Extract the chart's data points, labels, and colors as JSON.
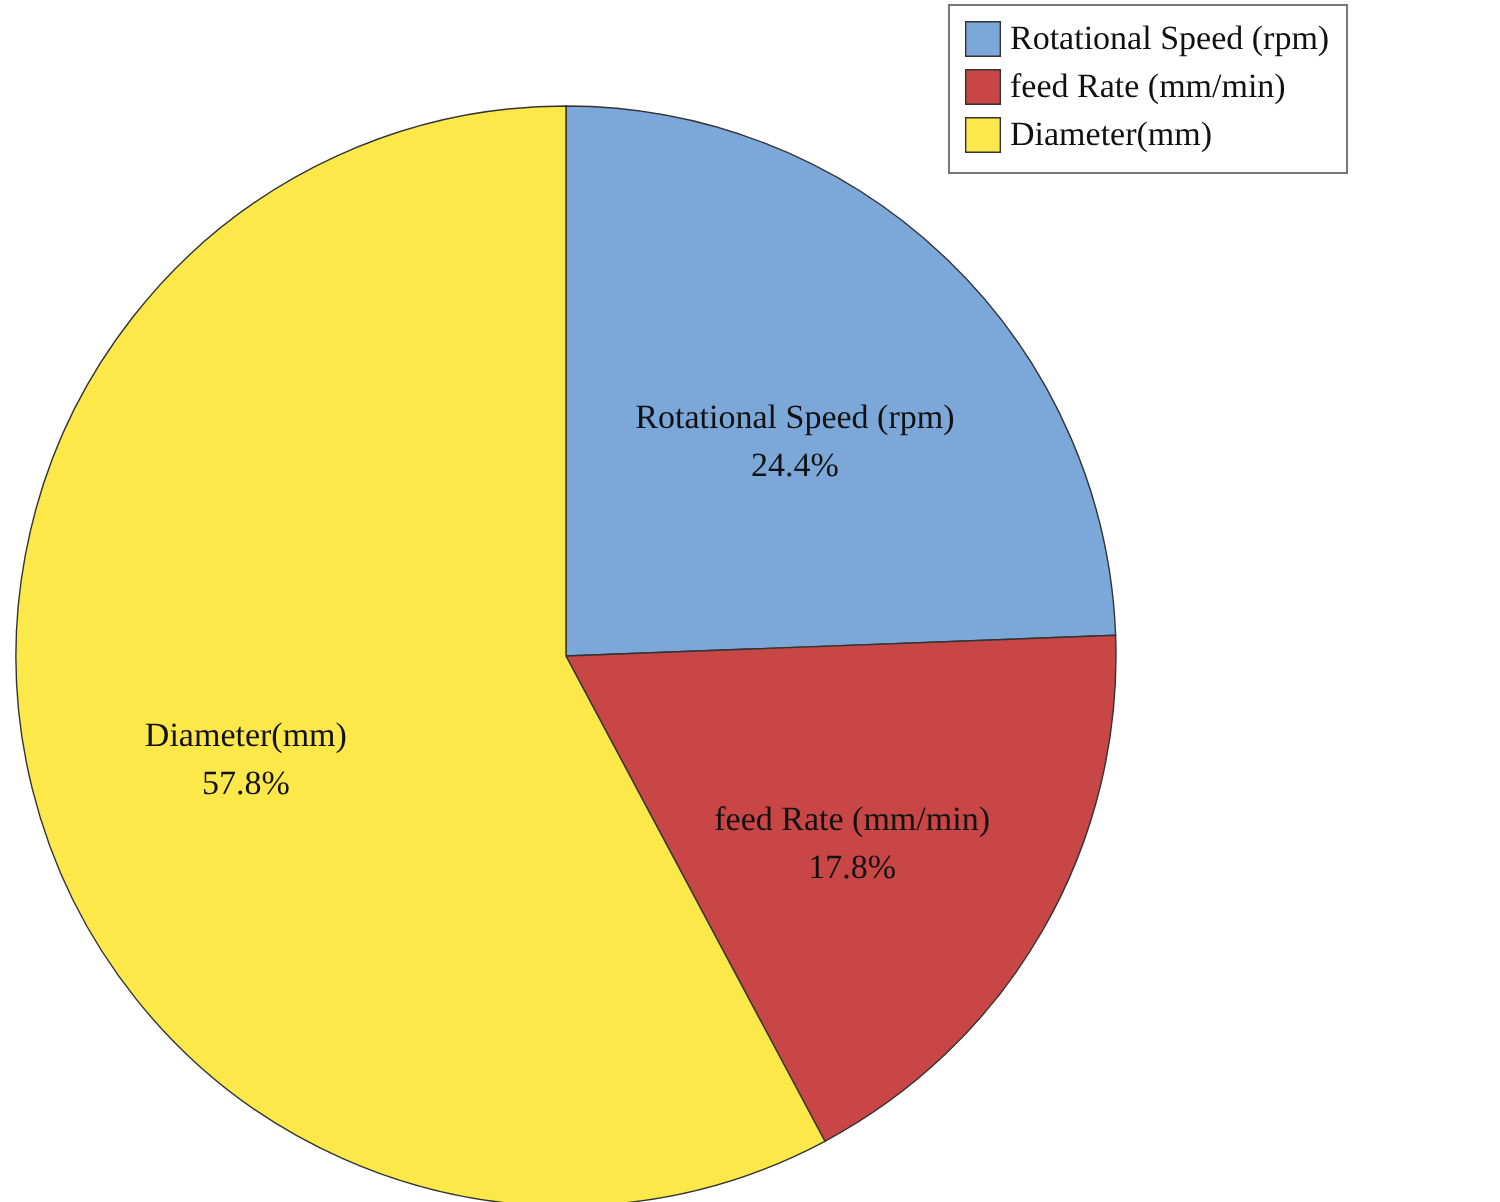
{
  "chart_data": {
    "type": "pie",
    "categories": [
      "Rotational Speed (rpm)",
      "feed Rate (mm/min)",
      "Diameter(mm)"
    ],
    "values": [
      24.4,
      17.8,
      57.8
    ],
    "colors": [
      "#7ba7d9",
      "#c84646",
      "#fde84a"
    ],
    "value_labels": [
      "24.4%",
      "17.8%",
      "57.8%"
    ],
    "legend": "top right"
  }
}
